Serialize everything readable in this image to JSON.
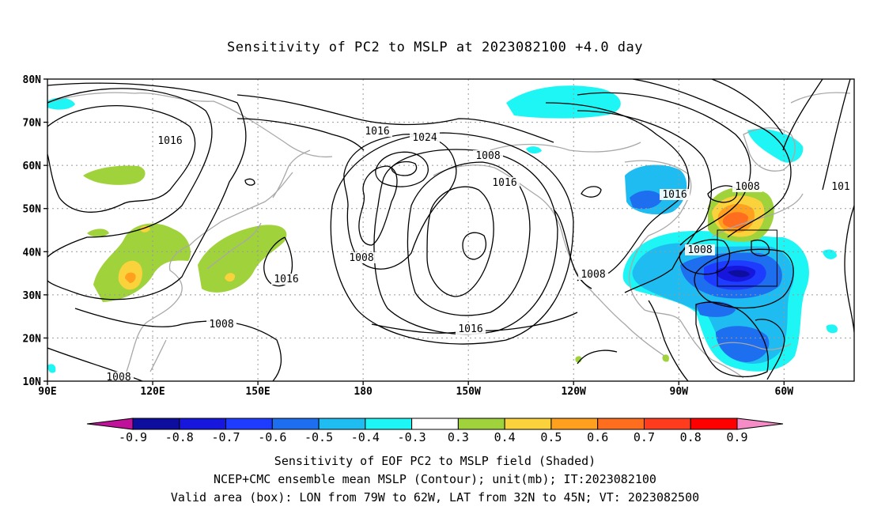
{
  "title": "Sensitivity of PC2 to MSLP at 2023082100 +4.0 day",
  "map": {
    "lat_axis_labels": [
      "80N",
      "70N",
      "60N",
      "50N",
      "40N",
      "30N",
      "20N",
      "10N"
    ],
    "lat_axis_values": [
      80,
      70,
      60,
      50,
      40,
      30,
      20,
      10
    ],
    "lon_axis_labels": [
      "90E",
      "120E",
      "150E",
      "180",
      "150W",
      "120W",
      "90W",
      "60W"
    ],
    "lon_axis_values": [
      90,
      120,
      150,
      180,
      210,
      240,
      270,
      300
    ],
    "lon_range": [
      90,
      320
    ],
    "lat_range": [
      10,
      80
    ],
    "gridlines": "dotted",
    "contour_labels": [
      "1016",
      "1008",
      "1016",
      "1008",
      "1016",
      "1024",
      "1008",
      "1016",
      "1008",
      "1016",
      "1008",
      "1008",
      "1016",
      "1008",
      "101"
    ],
    "valid_box": {
      "lon_min": 281,
      "lon_max": 298,
      "lat_min": 32,
      "lat_max": 45
    }
  },
  "colorbar": {
    "labels": [
      "-0.9",
      "-0.8",
      "-0.7",
      "-0.6",
      "-0.5",
      "-0.4",
      "-0.3",
      "0.3",
      "0.4",
      "0.5",
      "0.6",
      "0.7",
      "0.8",
      "0.9"
    ],
    "colors": [
      "#c0119b",
      "#0d0d9e",
      "#1616dc",
      "#1e3cff",
      "#1e6ef0",
      "#1ebcf0",
      "#1ef5f5",
      "#ffffff",
      "#a0d23c",
      "#fad23c",
      "#ffa01e",
      "#ff6e1e",
      "#ff3c1e",
      "#ff0000",
      "#f58cc8"
    ]
  },
  "captions": {
    "line1": "Sensitivity of EOF PC2 to MSLP field (Shaded)",
    "line2": "NCEP+CMC ensemble mean MSLP (Contour); unit(mb); IT:2023082100",
    "line3": "Valid area (box): LON from 79W to 62W, LAT from 32N to 45N; VT: 2023082500"
  }
}
